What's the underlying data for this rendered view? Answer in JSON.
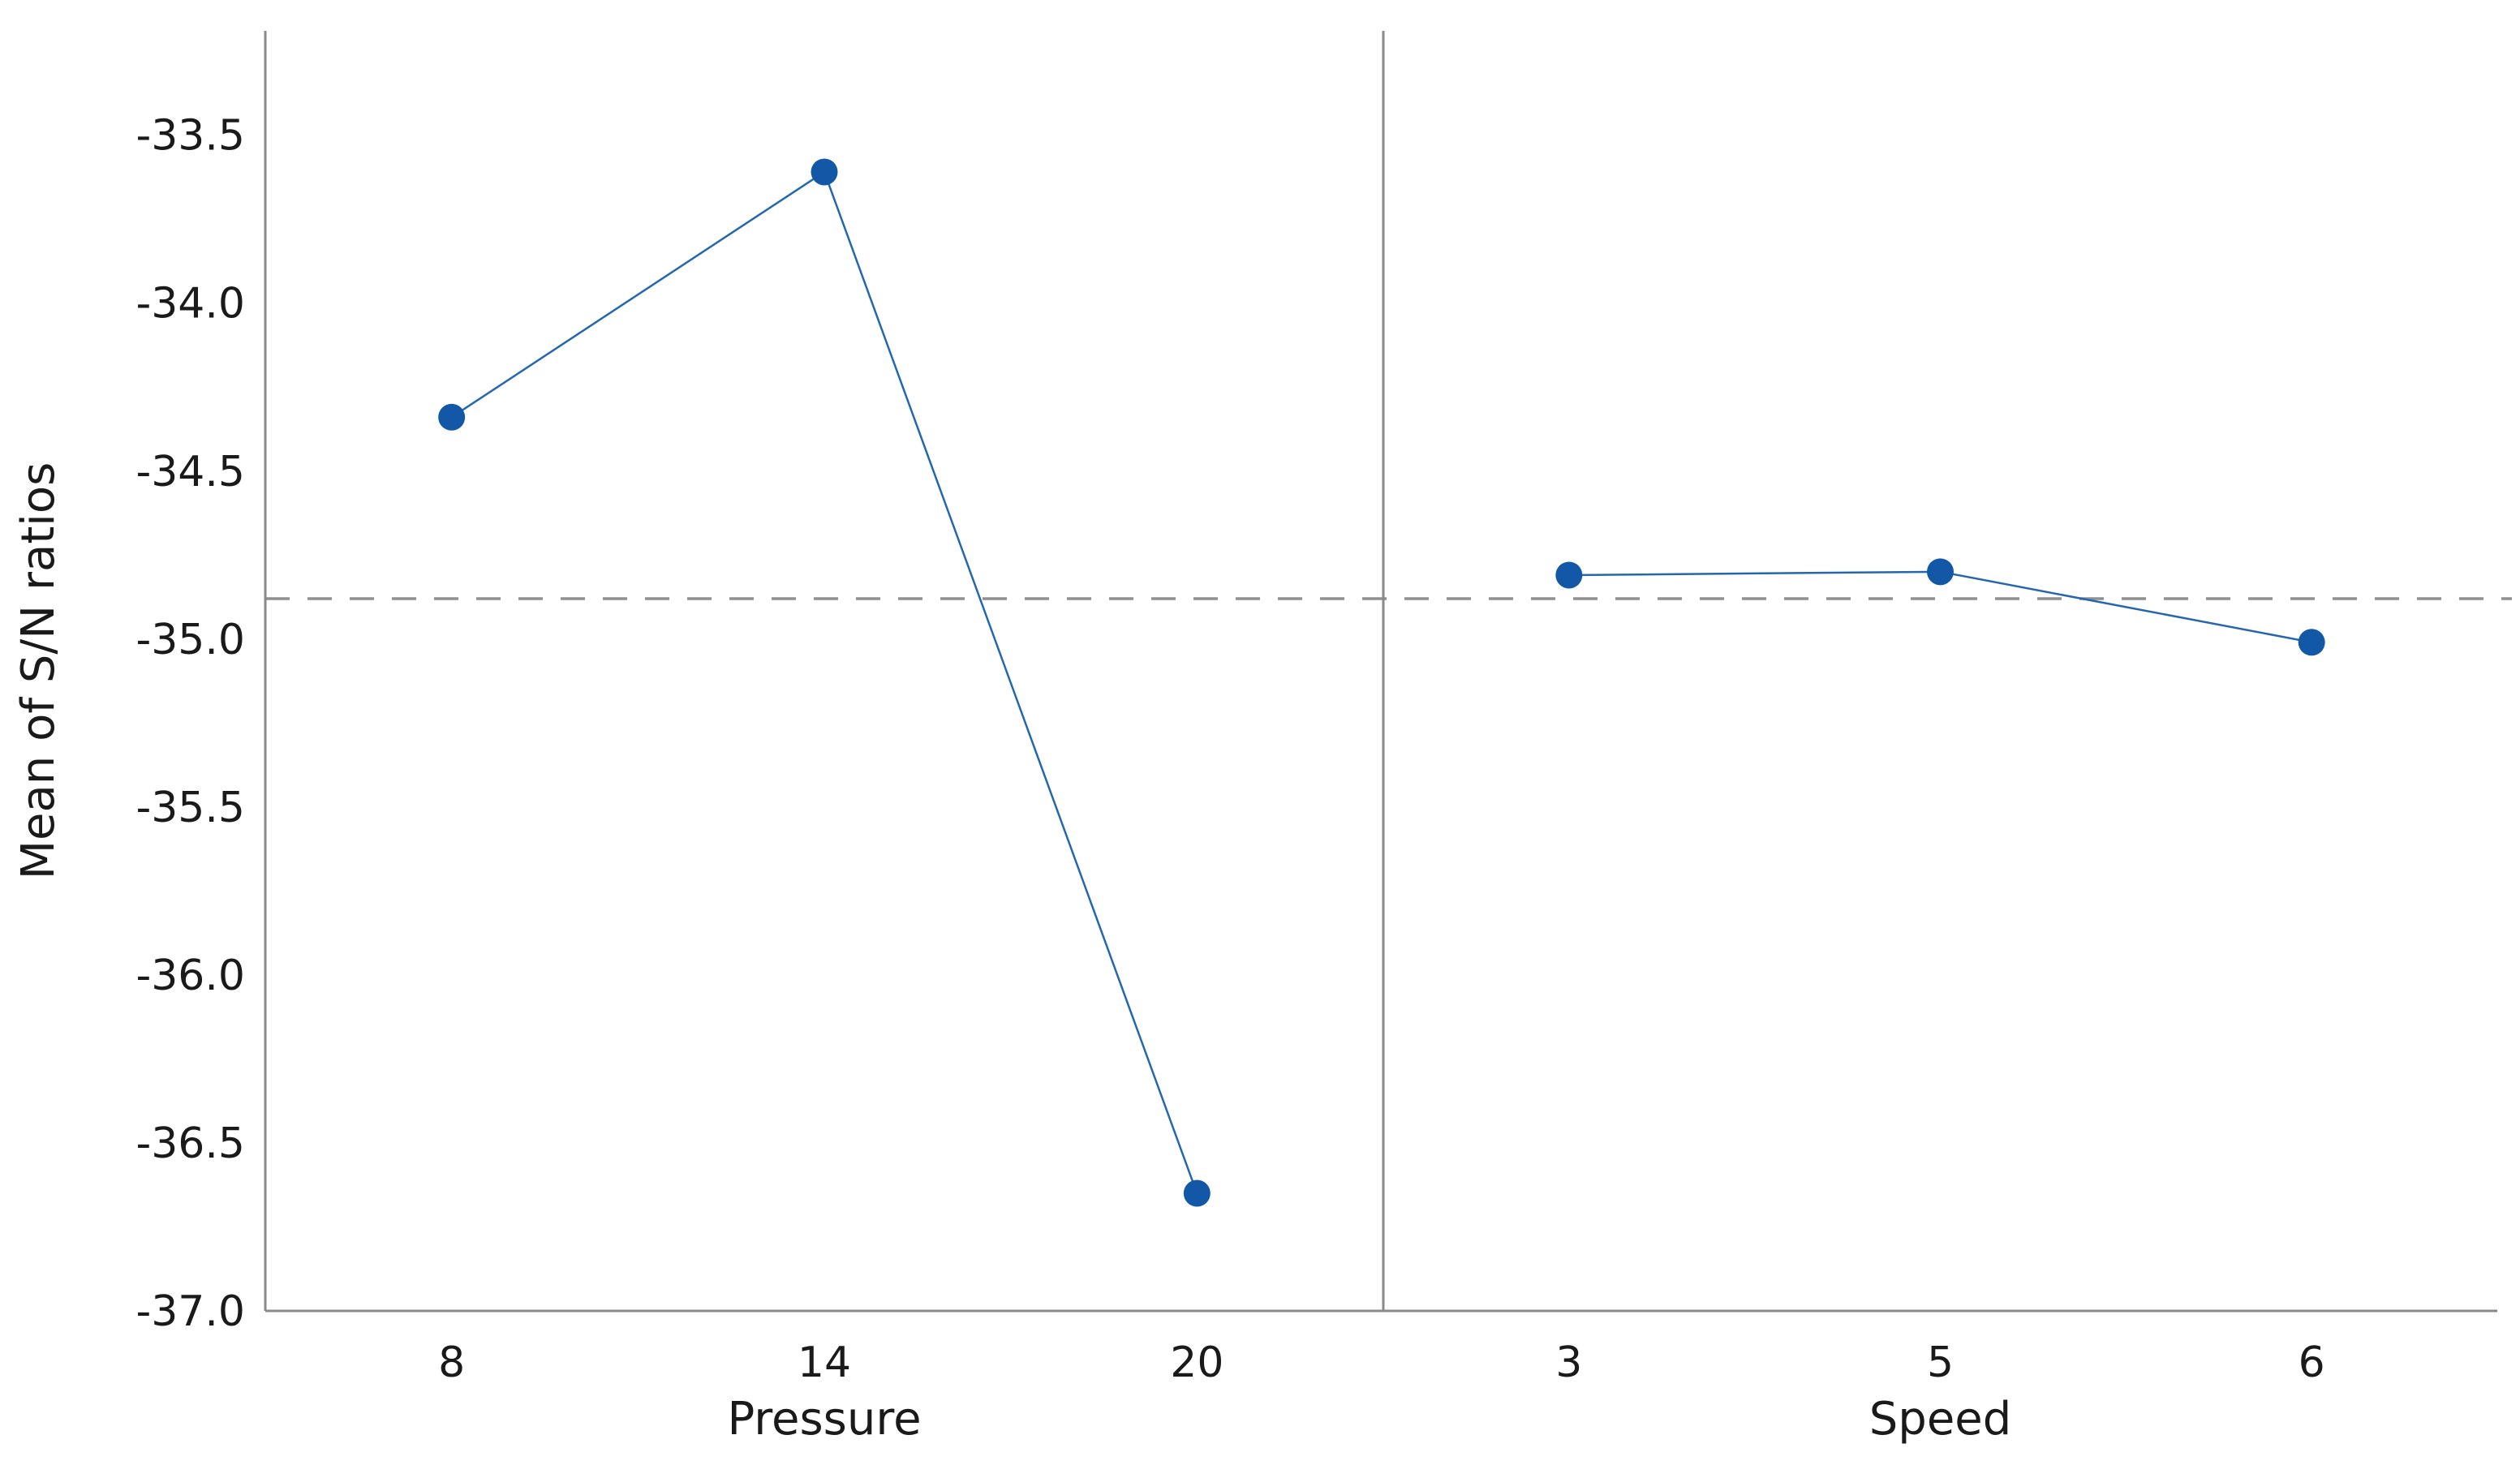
{
  "figure": {
    "background": "#ffffff"
  },
  "chart_data": {
    "type": "line",
    "subtype": "main-effects-plot",
    "title": "",
    "ylabel": "Mean of S/N ratios",
    "xlabel": "",
    "ylim": [
      -37.0,
      -33.19
    ],
    "grid": false,
    "legend": "none",
    "yticks": [
      {
        "value": -33.5,
        "label": "-33.5"
      },
      {
        "value": -34.0,
        "label": "-34.0"
      },
      {
        "value": -34.5,
        "label": "-34.5"
      },
      {
        "value": -35.0,
        "label": "-35.0"
      },
      {
        "value": -35.5,
        "label": "-35.5"
      },
      {
        "value": -36.0,
        "label": "-36.0"
      },
      {
        "value": -36.5,
        "label": "-36.5"
      },
      {
        "value": -37.0,
        "label": "-37.0"
      }
    ],
    "reference_line": {
      "value": -34.88,
      "style": "dashed"
    },
    "panels": [
      {
        "factor": "Pressure",
        "categories": [
          "8",
          "14",
          "20"
        ],
        "values": [
          -34.34,
          -33.61,
          -36.65
        ]
      },
      {
        "factor": "Speed",
        "categories": [
          "3",
          "5",
          "6"
        ],
        "values": [
          -34.81,
          -34.8,
          -35.01
        ]
      }
    ],
    "colors": {
      "marker": "#1258a6",
      "line": "#2567ae",
      "axis": "#8a8a8a",
      "reference": "#8f8f8f",
      "text": "#1a1a1a",
      "background": "#ffffff"
    }
  }
}
